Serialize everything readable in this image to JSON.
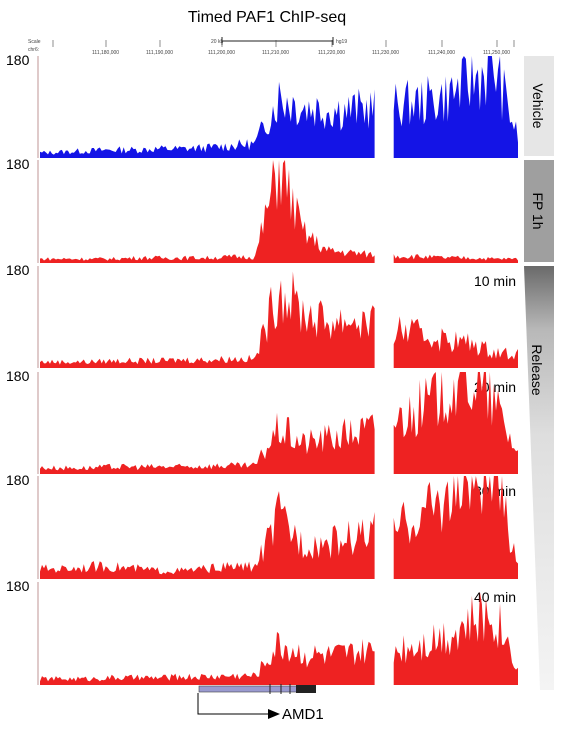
{
  "chart_data": {
    "type": "area",
    "title": "Timed PAF1 ChIP-seq",
    "ruler": {
      "scale_label": "Scale",
      "chrom_label": "chr6:",
      "scale_bar_text": "20 kb",
      "assembly": "hg19",
      "ticks": [
        "111,180,000",
        "111,190,000",
        "111,200,000",
        "111,210,000",
        "111,220,000",
        "111,230,000",
        "111,240,000",
        "111,250,000"
      ]
    },
    "y_max_label": "180",
    "colors": {
      "vehicle": "#1414e6",
      "treated": "#ee2222"
    },
    "x": [
      0,
      5,
      10,
      15,
      20,
      25,
      30,
      35,
      40,
      45,
      50,
      55,
      60,
      65,
      70,
      75,
      80,
      85,
      90,
      95,
      100
    ],
    "gaps": [
      [
        70,
        74
      ]
    ],
    "series": [
      {
        "name": "Vehicle",
        "side_label": "Vehicle",
        "time_label": "",
        "values": [
          5,
          6,
          7,
          8,
          8,
          9,
          9,
          10,
          12,
          14,
          60,
          50,
          48,
          47,
          50,
          52,
          55,
          60,
          75,
          90,
          20
        ]
      },
      {
        "name": "FP 1h",
        "side_label": "FP 1h",
        "time_label": "",
        "values": [
          4,
          4,
          4,
          4,
          5,
          5,
          5,
          5,
          6,
          6,
          95,
          30,
          12,
          10,
          8,
          7,
          6,
          5,
          5,
          4,
          4
        ]
      },
      {
        "name": "10 min",
        "side_label": "",
        "time_label": "10 min",
        "values": [
          6,
          6,
          6,
          7,
          7,
          7,
          8,
          8,
          9,
          9,
          80,
          55,
          45,
          48,
          42,
          38,
          32,
          28,
          24,
          16,
          14
        ]
      },
      {
        "name": "20 min",
        "side_label": "",
        "time_label": "20 min",
        "values": [
          6,
          6,
          6,
          7,
          7,
          7,
          7,
          8,
          8,
          8,
          45,
          30,
          35,
          40,
          45,
          55,
          65,
          85,
          95,
          70,
          20
        ]
      },
      {
        "name": "30 min",
        "side_label": "",
        "time_label": "30 min",
        "values": [
          10,
          10,
          12,
          12,
          10,
          8,
          8,
          10,
          12,
          12,
          60,
          35,
          35,
          40,
          45,
          50,
          65,
          80,
          95,
          100,
          15
        ]
      },
      {
        "name": "40 min",
        "side_label": "",
        "time_label": "40 min",
        "values": [
          6,
          6,
          6,
          7,
          7,
          7,
          8,
          8,
          9,
          9,
          40,
          30,
          28,
          30,
          32,
          36,
          42,
          50,
          60,
          70,
          20
        ]
      }
    ],
    "release_label": "Release",
    "gene_label": "AMD1"
  }
}
